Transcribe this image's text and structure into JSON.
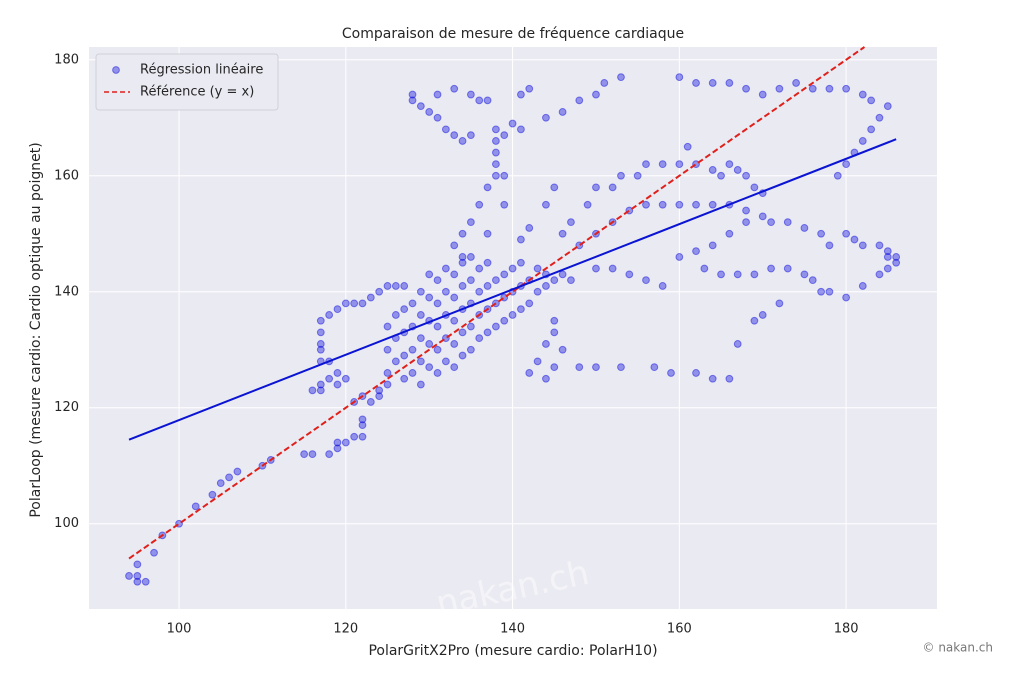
{
  "chart_data": {
    "type": "scatter",
    "title": "Comparaison de mesure de fréquence cardiaque",
    "xlabel": "PolarGritX2Pro (mesure cardio: PolarH10)",
    "ylabel": "PolarLoop (mesure cardio: Cardio optique au poignet)",
    "watermark": "nakan.ch",
    "copyright": "© nakan.ch",
    "xlim": [
      89.2,
      190.9
    ],
    "ylim": [
      85.3,
      182.2
    ],
    "xticks": [
      100,
      120,
      140,
      160,
      180
    ],
    "yticks": [
      100,
      120,
      140,
      160,
      180
    ],
    "grid": true,
    "legend": "upper left",
    "series": [
      {
        "name": "Régression linéaire",
        "kind": "scatter",
        "color": "#0000dd",
        "x": [
          94,
          95,
          95,
          96,
          95,
          97,
          98,
          100,
          102,
          104,
          105,
          106,
          107,
          110,
          111,
          115,
          116,
          118,
          119,
          119,
          120,
          121,
          122,
          122,
          122,
          121,
          122,
          123,
          124,
          124,
          125,
          116,
          117,
          117,
          118,
          118,
          119,
          119,
          120,
          117,
          117,
          117,
          117,
          117,
          118,
          119,
          120,
          121,
          122,
          123,
          124,
          125,
          126,
          125,
          125,
          125,
          126,
          126,
          126,
          127,
          127,
          127,
          127,
          127,
          128,
          128,
          128,
          128,
          129,
          129,
          129,
          129,
          129,
          130,
          130,
          130,
          130,
          130,
          131,
          131,
          131,
          131,
          131,
          132,
          132,
          132,
          132,
          132,
          133,
          133,
          133,
          133,
          133,
          134,
          134,
          134,
          134,
          134,
          135,
          135,
          135,
          135,
          136,
          136,
          136,
          136,
          137,
          137,
          137,
          137,
          138,
          138,
          138,
          139,
          139,
          139,
          140,
          140,
          140,
          141,
          141,
          141,
          142,
          142,
          143,
          143,
          144,
          144,
          145,
          146,
          147,
          142,
          143,
          144,
          145,
          144,
          145,
          146,
          145,
          148,
          150,
          153,
          157,
          159,
          162,
          164,
          166,
          128,
          128,
          129,
          130,
          131,
          131,
          132,
          133,
          134,
          135,
          133,
          135,
          136,
          137,
          138,
          139,
          138,
          138,
          138,
          139,
          140,
          141,
          141,
          142,
          144,
          146,
          148,
          150,
          151,
          153,
          133,
          134,
          135,
          136,
          137,
          138,
          135,
          134,
          137,
          139,
          141,
          142,
          144,
          145,
          146,
          147,
          149,
          150,
          152,
          153,
          155,
          156,
          158,
          160,
          161,
          162,
          164,
          165,
          166,
          167,
          168,
          169,
          170,
          148,
          150,
          152,
          154,
          156,
          158,
          160,
          162,
          164,
          166,
          168,
          170,
          171,
          173,
          175,
          177,
          178,
          180,
          181,
          182,
          184,
          185,
          186,
          150,
          152,
          154,
          156,
          158,
          160,
          162,
          164,
          166,
          168,
          163,
          165,
          167,
          169,
          171,
          173,
          175,
          176,
          177,
          178,
          180,
          182,
          184,
          185,
          172,
          170,
          169,
          167,
          160,
          162,
          164,
          166,
          168,
          170,
          172,
          174,
          176,
          178,
          180,
          182,
          183,
          185,
          184,
          183,
          182,
          181,
          180,
          179,
          186,
          185
        ],
        "values": [
          91,
          91,
          90,
          90,
          93,
          95,
          98,
          100,
          103,
          105,
          107,
          108,
          109,
          110,
          111,
          112,
          112,
          112,
          113,
          114,
          114,
          115,
          115,
          117,
          118,
          121,
          122,
          121,
          122,
          123,
          124,
          123,
          123,
          124,
          125,
          128,
          126,
          124,
          125,
          128,
          130,
          131,
          133,
          135,
          136,
          137,
          138,
          138,
          138,
          139,
          140,
          141,
          141,
          126,
          130,
          134,
          128,
          132,
          136,
          125,
          129,
          133,
          137,
          141,
          126,
          130,
          134,
          138,
          124,
          128,
          132,
          136,
          140,
          127,
          131,
          135,
          139,
          143,
          126,
          130,
          134,
          138,
          142,
          128,
          132,
          136,
          140,
          144,
          127,
          131,
          135,
          139,
          143,
          129,
          133,
          137,
          141,
          145,
          130,
          134,
          138,
          142,
          132,
          136,
          140,
          144,
          133,
          137,
          141,
          145,
          134,
          138,
          142,
          135,
          139,
          143,
          136,
          140,
          144,
          137,
          141,
          145,
          138,
          142,
          140,
          144,
          141,
          143,
          142,
          143,
          142,
          126,
          128,
          125,
          127,
          131,
          133,
          130,
          135,
          127,
          127,
          127,
          127,
          126,
          126,
          125,
          125,
          174,
          173,
          172,
          171,
          170,
          174,
          168,
          167,
          166,
          167,
          175,
          174,
          173,
          173,
          168,
          167,
          166,
          164,
          162,
          160,
          169,
          168,
          174,
          175,
          170,
          171,
          173,
          174,
          176,
          177,
          148,
          150,
          152,
          155,
          158,
          160,
          146,
          146,
          150,
          155,
          149,
          151,
          155,
          158,
          150,
          152,
          155,
          158,
          158,
          160,
          160,
          162,
          162,
          162,
          165,
          162,
          161,
          160,
          162,
          161,
          160,
          158,
          157,
          148,
          150,
          152,
          154,
          155,
          155,
          155,
          155,
          155,
          155,
          154,
          153,
          152,
          152,
          151,
          150,
          148,
          150,
          149,
          148,
          148,
          147,
          146,
          144,
          144,
          143,
          142,
          141,
          146,
          147,
          148,
          150,
          152,
          144,
          143,
          143,
          143,
          144,
          144,
          143,
          142,
          140,
          140,
          139,
          141,
          143,
          144,
          138,
          136,
          135,
          131,
          177,
          176,
          176,
          176,
          175,
          174,
          175,
          176,
          175,
          175,
          175,
          174,
          173,
          172,
          170,
          168,
          166,
          164,
          162,
          160,
          145,
          146
        ]
      },
      {
        "name": "Référence (y = x)",
        "kind": "line",
        "dashed": true,
        "color": "#e0201b",
        "x": [
          94,
          182.2
        ],
        "values": [
          94,
          182.2
        ]
      },
      {
        "kind": "line",
        "dashed": false,
        "color": "#0a14d2",
        "x": [
          94,
          186
        ],
        "values": [
          114.5,
          166.3
        ]
      }
    ]
  }
}
